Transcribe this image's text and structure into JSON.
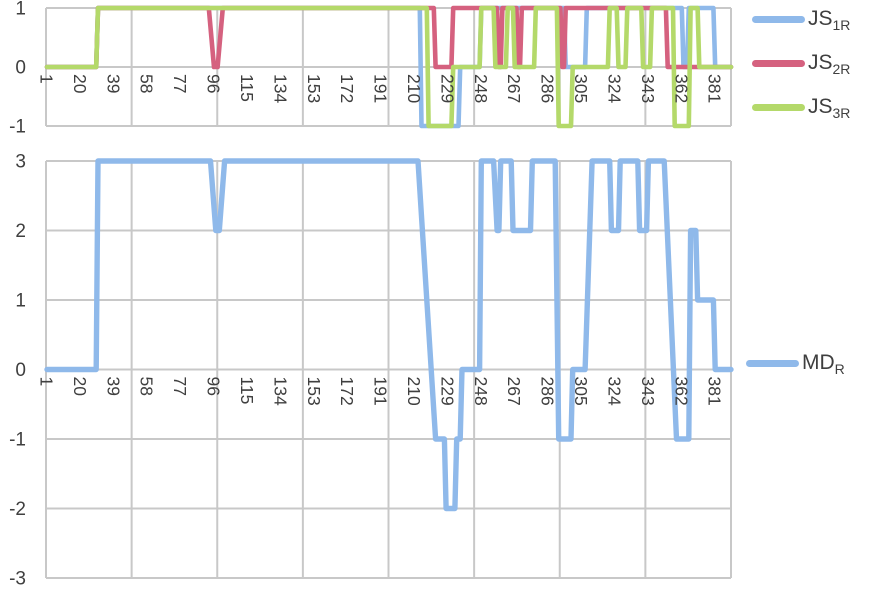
{
  "legend_top": {
    "items": [
      {
        "main": "JS",
        "sub": "1R",
        "color": "#8FB9EA"
      },
      {
        "main": "JS",
        "sub": "2R",
        "color": "#D5617F"
      },
      {
        "main": "JS",
        "sub": "3R",
        "color": "#B4D96A"
      }
    ]
  },
  "legend_bottom": {
    "items": [
      {
        "main": "MD",
        "sub": "R",
        "color": "#8FB9EA"
      }
    ]
  },
  "colors": {
    "gridline": "#C8C8C8",
    "axis_text": "#3F3F3F",
    "background": "#FFFFFF"
  },
  "chart_data": [
    {
      "type": "line",
      "title": "",
      "xlabel": "",
      "ylabel": "",
      "xlim": [
        1,
        390
      ],
      "ylim": [
        -1,
        1
      ],
      "yticks": [
        1,
        0,
        -1
      ],
      "x_ticks": [
        1,
        20,
        39,
        58,
        77,
        96,
        115,
        134,
        153,
        172,
        191,
        210,
        229,
        248,
        267,
        286,
        305,
        324,
        343,
        362,
        381
      ],
      "grid": true,
      "legend_position": "right",
      "series": [
        {
          "name": "JS_1R",
          "color": "#8FB9EA",
          "points": [
            [
              1,
              0
            ],
            [
              29,
              0
            ],
            [
              30,
              1
            ],
            [
              213,
              1
            ],
            [
              214,
              -1
            ],
            [
              235,
              -1
            ],
            [
              236,
              0
            ],
            [
              247,
              0
            ],
            [
              248,
              1
            ],
            [
              295,
              1
            ],
            [
              296,
              0
            ],
            [
              307,
              0
            ],
            [
              308,
              1
            ],
            [
              362,
              1
            ],
            [
              363,
              0
            ],
            [
              365,
              0
            ],
            [
              366,
              1
            ],
            [
              380,
              1
            ],
            [
              381,
              0
            ],
            [
              390,
              0
            ]
          ]
        },
        {
          "name": "JS_2R",
          "color": "#D5617F",
          "points": [
            [
              1,
              0
            ],
            [
              29,
              0
            ],
            [
              30,
              1
            ],
            [
              93,
              1
            ],
            [
              96,
              0
            ],
            [
              98,
              0
            ],
            [
              101,
              1
            ],
            [
              221,
              1
            ],
            [
              222,
              0
            ],
            [
              231,
              0
            ],
            [
              232,
              1
            ],
            [
              257,
              1
            ],
            [
              258,
              0
            ],
            [
              259,
              0
            ],
            [
              260,
              1
            ],
            [
              268,
              1
            ],
            [
              269,
              0
            ],
            [
              270,
              0
            ],
            [
              271,
              1
            ],
            [
              293,
              1
            ],
            [
              294,
              0
            ],
            [
              295,
              0
            ],
            [
              296,
              1
            ],
            [
              353,
              1
            ],
            [
              354,
              0
            ],
            [
              390,
              0
            ]
          ]
        },
        {
          "name": "JS_3R",
          "color": "#B4D96A",
          "points": [
            [
              1,
              0
            ],
            [
              29,
              0
            ],
            [
              30,
              1
            ],
            [
              217,
              1
            ],
            [
              218,
              -1
            ],
            [
              231,
              -1
            ],
            [
              232,
              0
            ],
            [
              247,
              0
            ],
            [
              248,
              1
            ],
            [
              255,
              1
            ],
            [
              256,
              0
            ],
            [
              262,
              0
            ],
            [
              263,
              1
            ],
            [
              266,
              1
            ],
            [
              267,
              0
            ],
            [
              278,
              0
            ],
            [
              279,
              1
            ],
            [
              291,
              1
            ],
            [
              292,
              -1
            ],
            [
              299,
              -1
            ],
            [
              300,
              0
            ],
            [
              320,
              0
            ],
            [
              321,
              1
            ],
            [
              325,
              1
            ],
            [
              326,
              0
            ],
            [
              330,
              0
            ],
            [
              331,
              1
            ],
            [
              339,
              1
            ],
            [
              340,
              0
            ],
            [
              344,
              0
            ],
            [
              345,
              1
            ],
            [
              357,
              1
            ],
            [
              358,
              -1
            ],
            [
              366,
              -1
            ],
            [
              367,
              1
            ],
            [
              371,
              1
            ],
            [
              372,
              0
            ],
            [
              390,
              0
            ]
          ]
        }
      ]
    },
    {
      "type": "line",
      "title": "",
      "xlabel": "",
      "ylabel": "",
      "xlim": [
        1,
        390
      ],
      "ylim": [
        -3,
        3
      ],
      "yticks": [
        3,
        2,
        1,
        0,
        -1,
        -2,
        -3
      ],
      "x_ticks": [
        1,
        20,
        39,
        58,
        77,
        96,
        115,
        134,
        153,
        172,
        191,
        210,
        229,
        248,
        267,
        286,
        305,
        324,
        343,
        362,
        381
      ],
      "grid": true,
      "legend_position": "right",
      "series": [
        {
          "name": "MD_R",
          "color": "#8FB9EA",
          "points": [
            [
              1,
              0
            ],
            [
              29,
              0
            ],
            [
              30,
              3
            ],
            [
              94,
              3
            ],
            [
              97,
              2
            ],
            [
              99,
              2
            ],
            [
              102,
              3
            ],
            [
              212,
              3
            ],
            [
              222,
              -1
            ],
            [
              227,
              -1
            ],
            [
              228,
              -2
            ],
            [
              233,
              -2
            ],
            [
              234,
              -1
            ],
            [
              236,
              -1
            ],
            [
              237,
              0
            ],
            [
              247,
              0
            ],
            [
              248,
              3
            ],
            [
              255,
              3
            ],
            [
              257,
              2
            ],
            [
              258,
              2
            ],
            [
              259,
              3
            ],
            [
              265,
              3
            ],
            [
              266,
              2
            ],
            [
              276,
              2
            ],
            [
              277,
              3
            ],
            [
              290,
              3
            ],
            [
              292,
              -1
            ],
            [
              299,
              -1
            ],
            [
              300,
              0
            ],
            [
              307,
              0
            ],
            [
              311,
              3
            ],
            [
              321,
              3
            ],
            [
              322,
              2
            ],
            [
              326,
              2
            ],
            [
              327,
              3
            ],
            [
              337,
              3
            ],
            [
              338,
              2
            ],
            [
              342,
              2
            ],
            [
              343,
              3
            ],
            [
              352,
              3
            ],
            [
              359,
              -1
            ],
            [
              366,
              -1
            ],
            [
              367,
              2
            ],
            [
              370,
              2
            ],
            [
              371,
              1
            ],
            [
              380,
              1
            ],
            [
              381,
              0
            ],
            [
              390,
              0
            ]
          ]
        }
      ]
    }
  ]
}
